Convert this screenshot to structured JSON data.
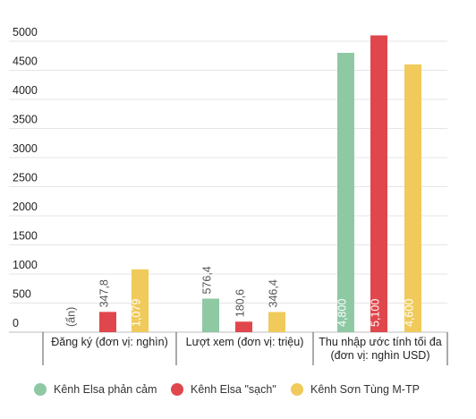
{
  "chart_data": {
    "type": "bar",
    "title": "",
    "xlabel": "",
    "ylabel": "",
    "ylim": [
      0,
      5000
    ],
    "yticks": [
      0,
      500,
      1000,
      1500,
      2000,
      2500,
      3000,
      3500,
      4000,
      4500,
      5000
    ],
    "ytick_labels": [
      "0",
      "500",
      "1000",
      "1500",
      "2000",
      "2500",
      "3000",
      "3500",
      "4000",
      "4500",
      "5000"
    ],
    "grid": true,
    "legend_position": "bottom",
    "categories": [
      "Đăng ký (đơn vị: nghìn)",
      "Lượt xem (đơn vị: triệu)",
      "Thu nhập ước tính tối đa (đơn vị: nghìn USD)"
    ],
    "category_label_lines": [
      [
        "Đăng ký (đơn vị: nghìn)"
      ],
      [
        "Lượt xem (đơn vị: triệu)"
      ],
      [
        "Thu nhập ước tính tối đa",
        "(đơn vị: nghìn USD)"
      ]
    ],
    "series": [
      {
        "name": "Kênh Elsa phản cảm",
        "color": "#8ec9a4",
        "values": [
          null,
          576.4,
          4800
        ],
        "labels": [
          "(ẩn)",
          "576,4",
          "4,800"
        ]
      },
      {
        "name": "Kênh Elsa \"sạch\"",
        "color": "#e0474c",
        "values": [
          347.8,
          180.6,
          5100
        ],
        "labels": [
          "347,8",
          "180,6",
          "5,100"
        ]
      },
      {
        "name": "Kênh Sơn Tùng M-TP",
        "color": "#f0ca5a",
        "values": [
          1079,
          346.4,
          4600
        ],
        "labels": [
          "1,079",
          "346,4",
          "4,600"
        ]
      }
    ]
  }
}
